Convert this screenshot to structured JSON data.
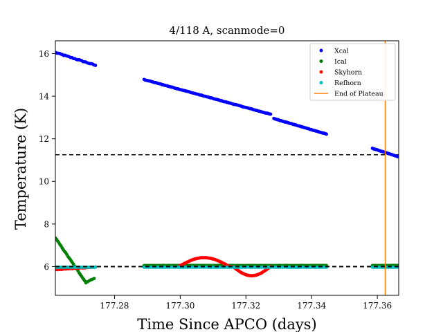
{
  "chart_data": {
    "type": "scatter",
    "title": "4/118 A, scanmode=0",
    "xlabel": "Time Since APCO (days)",
    "ylabel": "Temperature (K)",
    "xlim": [
      177.262,
      177.3665
    ],
    "ylim": [
      4.65,
      16.6
    ],
    "xticks": [
      177.28,
      177.3,
      177.32,
      177.34,
      177.36
    ],
    "xtick_labels": [
      "177.28",
      "177.30",
      "177.32",
      "177.34",
      "177.36"
    ],
    "yticks": [
      6,
      8,
      10,
      12,
      14,
      16
    ],
    "ytick_labels": [
      "6",
      "8",
      "10",
      "12",
      "14",
      "16"
    ],
    "grid": false,
    "legend_position": "top-right",
    "series": [
      {
        "name": "Xcal",
        "color": "#0000ff",
        "kind": "points",
        "segments": [
          {
            "x0": 177.262,
            "x1": 177.2742,
            "y0": 16.05,
            "y1": 15.45,
            "n": 30,
            "noise": 0.04
          },
          {
            "x0": 177.289,
            "x1": 177.3275,
            "y0": 14.78,
            "y1": 13.15,
            "n": 120,
            "noise": 0.02
          },
          {
            "x0": 177.3285,
            "x1": 177.3445,
            "y0": 12.95,
            "y1": 12.22,
            "n": 60,
            "noise": 0.02
          },
          {
            "x0": 177.3585,
            "x1": 177.3665,
            "y0": 11.55,
            "y1": 11.15,
            "n": 30,
            "noise": 0.015
          }
        ]
      },
      {
        "name": "Ical",
        "color": "#008000",
        "kind": "points",
        "segments": [
          {
            "x0": 177.262,
            "x1": 177.2713,
            "y0": 7.35,
            "y1": 5.25,
            "n": 28,
            "noise": 0.03
          },
          {
            "x0": 177.2713,
            "x1": 177.2738,
            "y0": 5.25,
            "y1": 5.45,
            "n": 6,
            "noise": 0.02
          },
          {
            "x0": 177.289,
            "x1": 177.3445,
            "y0": 6.05,
            "y1": 6.05,
            "n": 170,
            "noise": 0.01
          },
          {
            "x0": 177.3585,
            "x1": 177.3665,
            "y0": 6.05,
            "y1": 6.05,
            "n": 30,
            "noise": 0.01
          }
        ]
      },
      {
        "name": "Skyhorn",
        "color": "#ff0000",
        "kind": "points",
        "segments": [
          {
            "x0": 177.262,
            "x1": 177.2742,
            "y0": 5.85,
            "y1": 5.98,
            "n": 20,
            "noise": 0.02
          },
          {
            "x0": 177.2995,
            "x1": 177.315,
            "peak": 6.42,
            "base": 6.0,
            "n": 55,
            "noise": 0.01
          },
          {
            "x0": 177.316,
            "x1": 177.3275,
            "peak": 5.57,
            "base": 6.0,
            "n": 45,
            "noise": 0.01
          }
        ]
      },
      {
        "name": "Refhorn",
        "color": "#00bfbf",
        "kind": "points",
        "segments": [
          {
            "x0": 177.262,
            "x1": 177.2742,
            "y0": 5.97,
            "y1": 5.97,
            "n": 40,
            "noise": 0.01
          },
          {
            "x0": 177.289,
            "x1": 177.3445,
            "y0": 5.97,
            "y1": 5.97,
            "n": 180,
            "noise": 0.01
          },
          {
            "x0": 177.3585,
            "x1": 177.3665,
            "y0": 5.97,
            "y1": 5.97,
            "n": 30,
            "noise": 0.01
          }
        ]
      },
      {
        "name": "End of Plateau",
        "color": "#ff7f0e",
        "kind": "vline",
        "x": 177.3624
      }
    ],
    "reference_lines": [
      {
        "y": 11.25,
        "style": "dashed",
        "color": "#000000"
      },
      {
        "y": 6.0,
        "style": "dashed",
        "color": "#000000"
      }
    ]
  }
}
